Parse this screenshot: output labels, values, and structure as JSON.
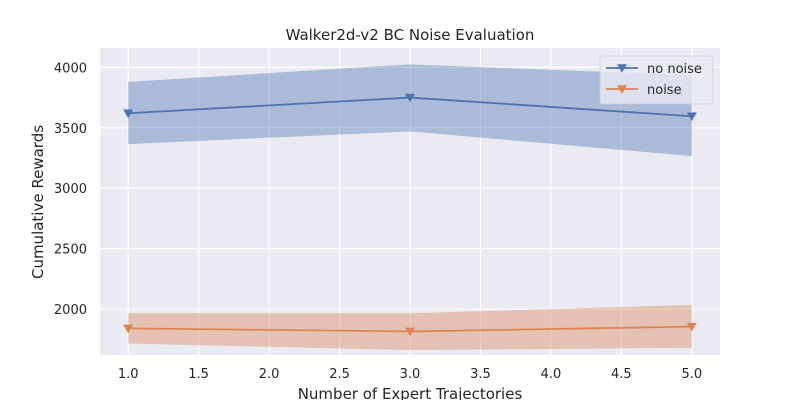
{
  "chart_data": {
    "type": "line",
    "title": "Walker2d-v2 BC Noise Evaluation",
    "xlabel": "Number of Expert Trajectories",
    "ylabel": "Cumulative Rewards",
    "xlim": [
      0.8,
      5.2
    ],
    "ylim": [
      1620,
      4160
    ],
    "xticks": [
      1.0,
      1.5,
      2.0,
      2.5,
      3.0,
      3.5,
      4.0,
      4.5,
      5.0
    ],
    "xtick_labels": [
      "1.0",
      "1.5",
      "2.0",
      "2.5",
      "3.0",
      "3.5",
      "4.0",
      "4.5",
      "5.0"
    ],
    "yticks": [
      2000,
      2500,
      3000,
      3500,
      4000
    ],
    "ytick_labels": [
      "2000",
      "2500",
      "3000",
      "3500",
      "4000"
    ],
    "grid": true,
    "legend_position": "top-right",
    "x": [
      1,
      3,
      5
    ],
    "series": [
      {
        "name": "no noise",
        "values": [
          3620,
          3750,
          3595
        ],
        "lower": [
          3365,
          3470,
          3265
        ],
        "upper": [
          3880,
          4025,
          3935
        ],
        "color": "#4c72b0",
        "marker": "triangle-down"
      },
      {
        "name": "noise",
        "values": [
          1840,
          1815,
          1855
        ],
        "lower": [
          1715,
          1660,
          1680
        ],
        "upper": [
          1965,
          1965,
          2035
        ],
        "color": "#dd8452",
        "marker": "triangle-down"
      }
    ]
  },
  "colors": {
    "plot_background": "#eaeaf2",
    "grid": "#ffffff"
  }
}
